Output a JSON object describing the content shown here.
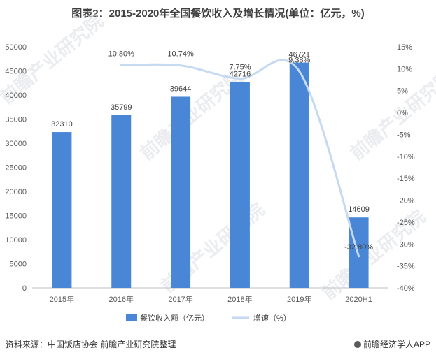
{
  "chart_data": {
    "type": "bar",
    "title": "图表2：2015-2020年全国餐饮收入及增长情况(单位：亿元，%)",
    "categories": [
      "2015年",
      "2016年",
      "2017年",
      "2018年",
      "2019年",
      "2020H1"
    ],
    "series": [
      {
        "name": "餐饮收入额（亿元）",
        "type": "bar",
        "axis": "left",
        "color": "#4a86d6",
        "values": [
          32310,
          35799,
          39644,
          42716,
          46721,
          14609
        ],
        "labels": [
          "32310",
          "35799",
          "39644",
          "42716",
          "46721",
          "14609"
        ]
      },
      {
        "name": "增速（%）",
        "type": "line",
        "axis": "right",
        "color": "#c5daf0",
        "values": [
          null,
          10.8,
          10.74,
          7.75,
          9.38,
          -32.8
        ],
        "labels": [
          "",
          "10.80%",
          "10.74%",
          "7.75%",
          "9.38%",
          "-32.80%"
        ]
      }
    ],
    "y_left": {
      "ylim": [
        0,
        50000
      ],
      "ticks": [
        "0",
        "5000",
        "10000",
        "15000",
        "20000",
        "25000",
        "30000",
        "35000",
        "40000",
        "45000",
        "50000"
      ]
    },
    "y_right": {
      "ylim": [
        -40,
        15
      ],
      "ticks": [
        "-40%",
        "-35%",
        "-30%",
        "-25%",
        "-20%",
        "-15%",
        "-10%",
        "-5%",
        "0%",
        "5%",
        "10%",
        "15%"
      ]
    },
    "grid": false,
    "legend_position": "bottom"
  },
  "footer": {
    "source": "资料来源：中国饭店协会 前瞻产业研究院整理",
    "brand": "前瞻经济学人APP"
  },
  "watermark": {
    "text": "前瞻产业研究院"
  }
}
